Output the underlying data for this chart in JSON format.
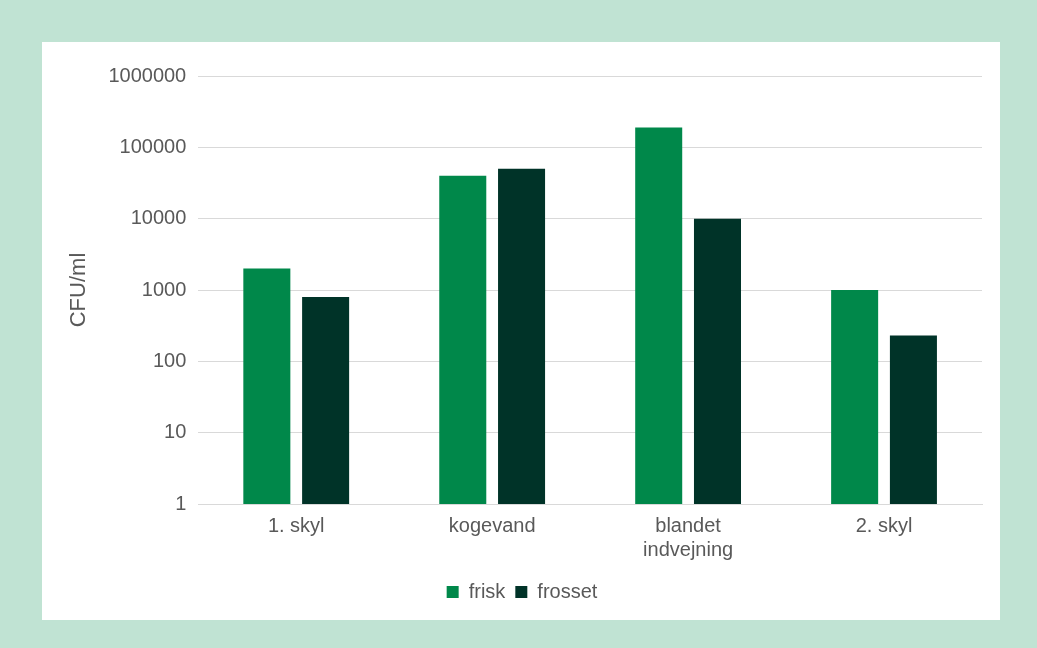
{
  "chart_data": {
    "type": "bar",
    "ylabel": "CFU/ml",
    "categories": [
      "1. skyl",
      "kogevand",
      "blandet indvejning",
      "2. skyl"
    ],
    "series": [
      {
        "name": "frisk",
        "color": "#00884a",
        "values": [
          2000,
          40000,
          190000,
          1000
        ]
      },
      {
        "name": "frosset",
        "color": "#003328",
        "values": [
          800,
          50000,
          10000,
          230
        ]
      }
    ],
    "log": true,
    "ylim": [
      1,
      1000000
    ],
    "yticks": [
      1,
      10,
      100,
      1000,
      10000,
      100000,
      1000000
    ],
    "grid": "y",
    "legend": "bottom"
  }
}
